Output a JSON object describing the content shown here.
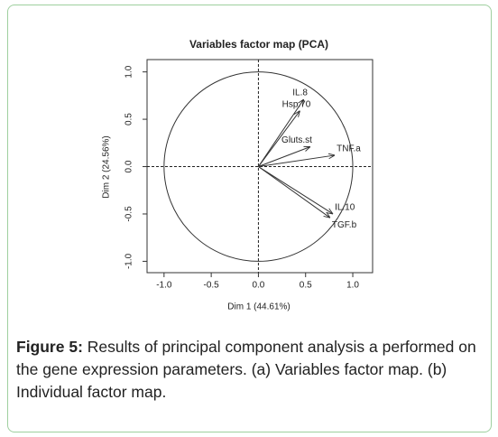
{
  "chart_data": {
    "type": "vector",
    "title": "Variables factor map (PCA)",
    "xlabel": "Dim 1 (44.61%)",
    "ylabel": "Dim 2 (24.56%)",
    "xlim": [
      -1.18,
      1.21
    ],
    "ylim": [
      -1.12,
      1.13
    ],
    "xticks": [
      {
        "value": -1,
        "label": "-1.0"
      },
      {
        "value": -0.5,
        "label": "-0.5"
      },
      {
        "value": 0,
        "label": "0.0"
      },
      {
        "value": 0.5,
        "label": "0.5"
      },
      {
        "value": 1,
        "label": "1.0"
      }
    ],
    "yticks": [
      {
        "value": -1,
        "label": "-1.0"
      },
      {
        "value": -0.5,
        "label": "-0.5"
      },
      {
        "value": 0,
        "label": "0.0"
      },
      {
        "value": 0.5,
        "label": "0.5"
      },
      {
        "value": 1,
        "label": "1.0"
      }
    ],
    "color": "#333333",
    "variables": [
      {
        "name": "IL.8",
        "x": 0.48,
        "y": 0.71
      },
      {
        "name": "Hsp.70",
        "x": 0.44,
        "y": 0.59
      },
      {
        "name": "Gluts.st",
        "x": 0.55,
        "y": 0.21
      },
      {
        "name": "TNF.a",
        "x": 0.81,
        "y": 0.12
      },
      {
        "name": "IL.10",
        "x": 0.79,
        "y": -0.5
      },
      {
        "name": "TGF.b",
        "x": 0.76,
        "y": -0.54
      }
    ]
  },
  "caption": {
    "label": "Figure 5:",
    "text": "Results of principal component analysis a performed on the gene expression parameters. (a) Variables factor map. (b) Individual factor map."
  }
}
